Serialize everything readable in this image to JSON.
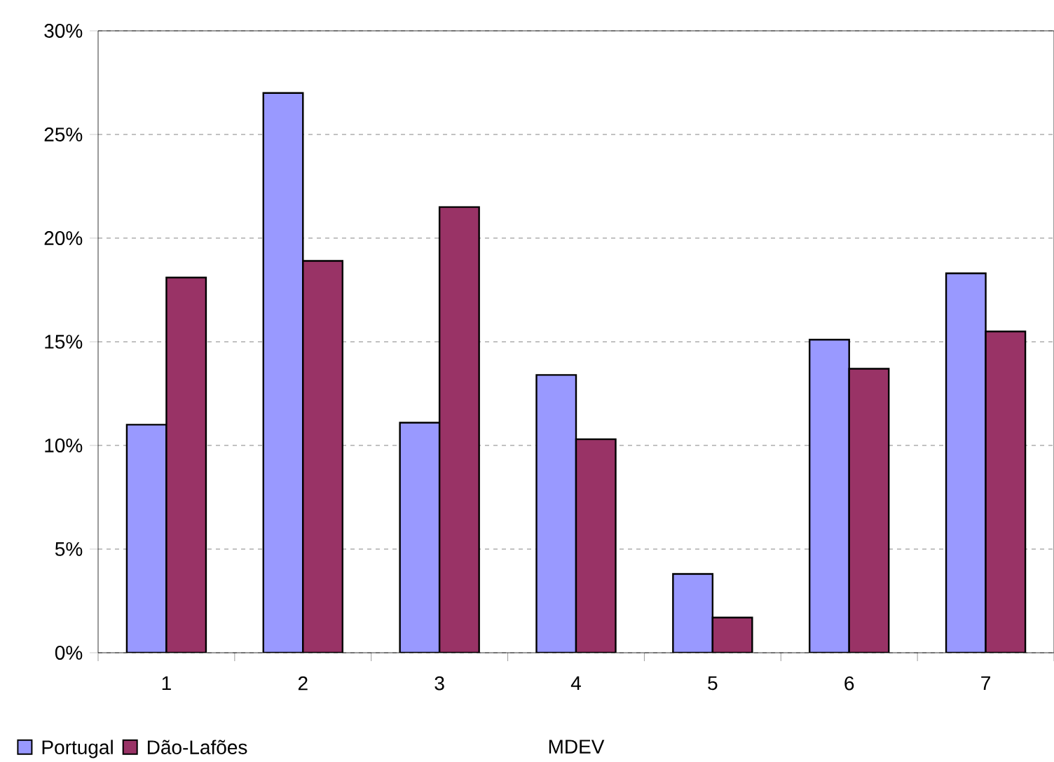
{
  "chart_data": {
    "type": "bar",
    "xlabel": "MDEV",
    "categories": [
      "1",
      "2",
      "3",
      "4",
      "5",
      "6",
      "7"
    ],
    "series": [
      {
        "name": "Portugal",
        "color": "#9999ff",
        "values": [
          11.0,
          27.0,
          11.1,
          13.4,
          3.8,
          15.1,
          18.3
        ]
      },
      {
        "name": "Dão-Lafões",
        "color": "#993366",
        "values": [
          18.1,
          18.9,
          21.5,
          10.3,
          1.7,
          13.7,
          15.5
        ]
      }
    ],
    "ylim": [
      0,
      30
    ],
    "yticks": [
      {
        "value": 0,
        "label": "0%"
      },
      {
        "value": 5,
        "label": "5%"
      },
      {
        "value": 10,
        "label": "10%"
      },
      {
        "value": 15,
        "label": "15%"
      },
      {
        "value": 20,
        "label": "20%"
      },
      {
        "value": 25,
        "label": "25%"
      },
      {
        "value": 30,
        "label": "30%"
      }
    ],
    "grid": "y",
    "legend": "bottom left"
  }
}
